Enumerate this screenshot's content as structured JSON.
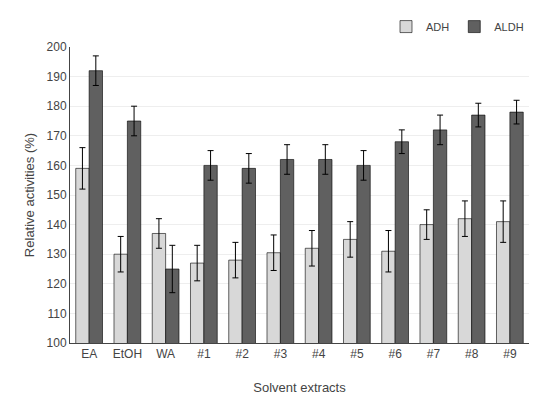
{
  "chart_data": {
    "type": "bar",
    "categories": [
      "EA",
      "EtOH",
      "WA",
      "#1",
      "#2",
      "#3",
      "#4",
      "#5",
      "#6",
      "#7",
      "#8",
      "#9"
    ],
    "series": [
      {
        "name": "ADH",
        "color": "#d8d8d8",
        "values": [
          159,
          130,
          137,
          127,
          128,
          130.5,
          132,
          135,
          131,
          140,
          142,
          141
        ],
        "errors": [
          7,
          6,
          5,
          6,
          6,
          6,
          6,
          6,
          7,
          5,
          6,
          7
        ]
      },
      {
        "name": "ALDH",
        "color": "#606060",
        "values": [
          192,
          175,
          125,
          160,
          159,
          162,
          162,
          160,
          168,
          172,
          177,
          178
        ],
        "errors": [
          5,
          5,
          8,
          5,
          5,
          5,
          5,
          5,
          4,
          5,
          4,
          4
        ]
      }
    ],
    "xlabel": "Solvent extracts",
    "ylabel": "Relative activities (%)",
    "ylim": [
      100,
      200
    ],
    "yticks": [
      100,
      110,
      120,
      130,
      140,
      150,
      160,
      170,
      180,
      190,
      200
    ],
    "grid": true,
    "legend": "upper right"
  }
}
